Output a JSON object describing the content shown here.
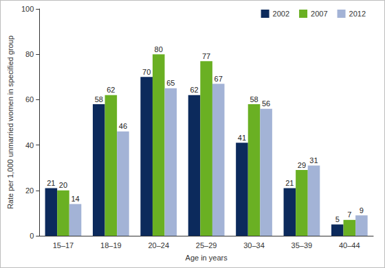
{
  "chart_data": {
    "type": "bar",
    "x_label": "Age in years",
    "y_label": "Rate per 1,000 unmarried women in specified group",
    "categories": [
      "15–17",
      "18–19",
      "20–24",
      "25–29",
      "30–34",
      "35–39",
      "40–44"
    ],
    "series": [
      {
        "name": "2002",
        "color": "#0c2a5c",
        "values": [
          21,
          58,
          70,
          62,
          41,
          21,
          5
        ]
      },
      {
        "name": "2007",
        "color": "#6ab023",
        "values": [
          20,
          62,
          80,
          77,
          58,
          29,
          7
        ]
      },
      {
        "name": "2012",
        "color": "#a3b3d6",
        "values": [
          14,
          46,
          65,
          67,
          56,
          31,
          9
        ]
      }
    ],
    "ylim": [
      0,
      100
    ],
    "yticks": [
      0,
      20,
      40,
      60,
      80,
      100
    ],
    "grid": false,
    "legend": "top-right",
    "data_labels": true
  }
}
